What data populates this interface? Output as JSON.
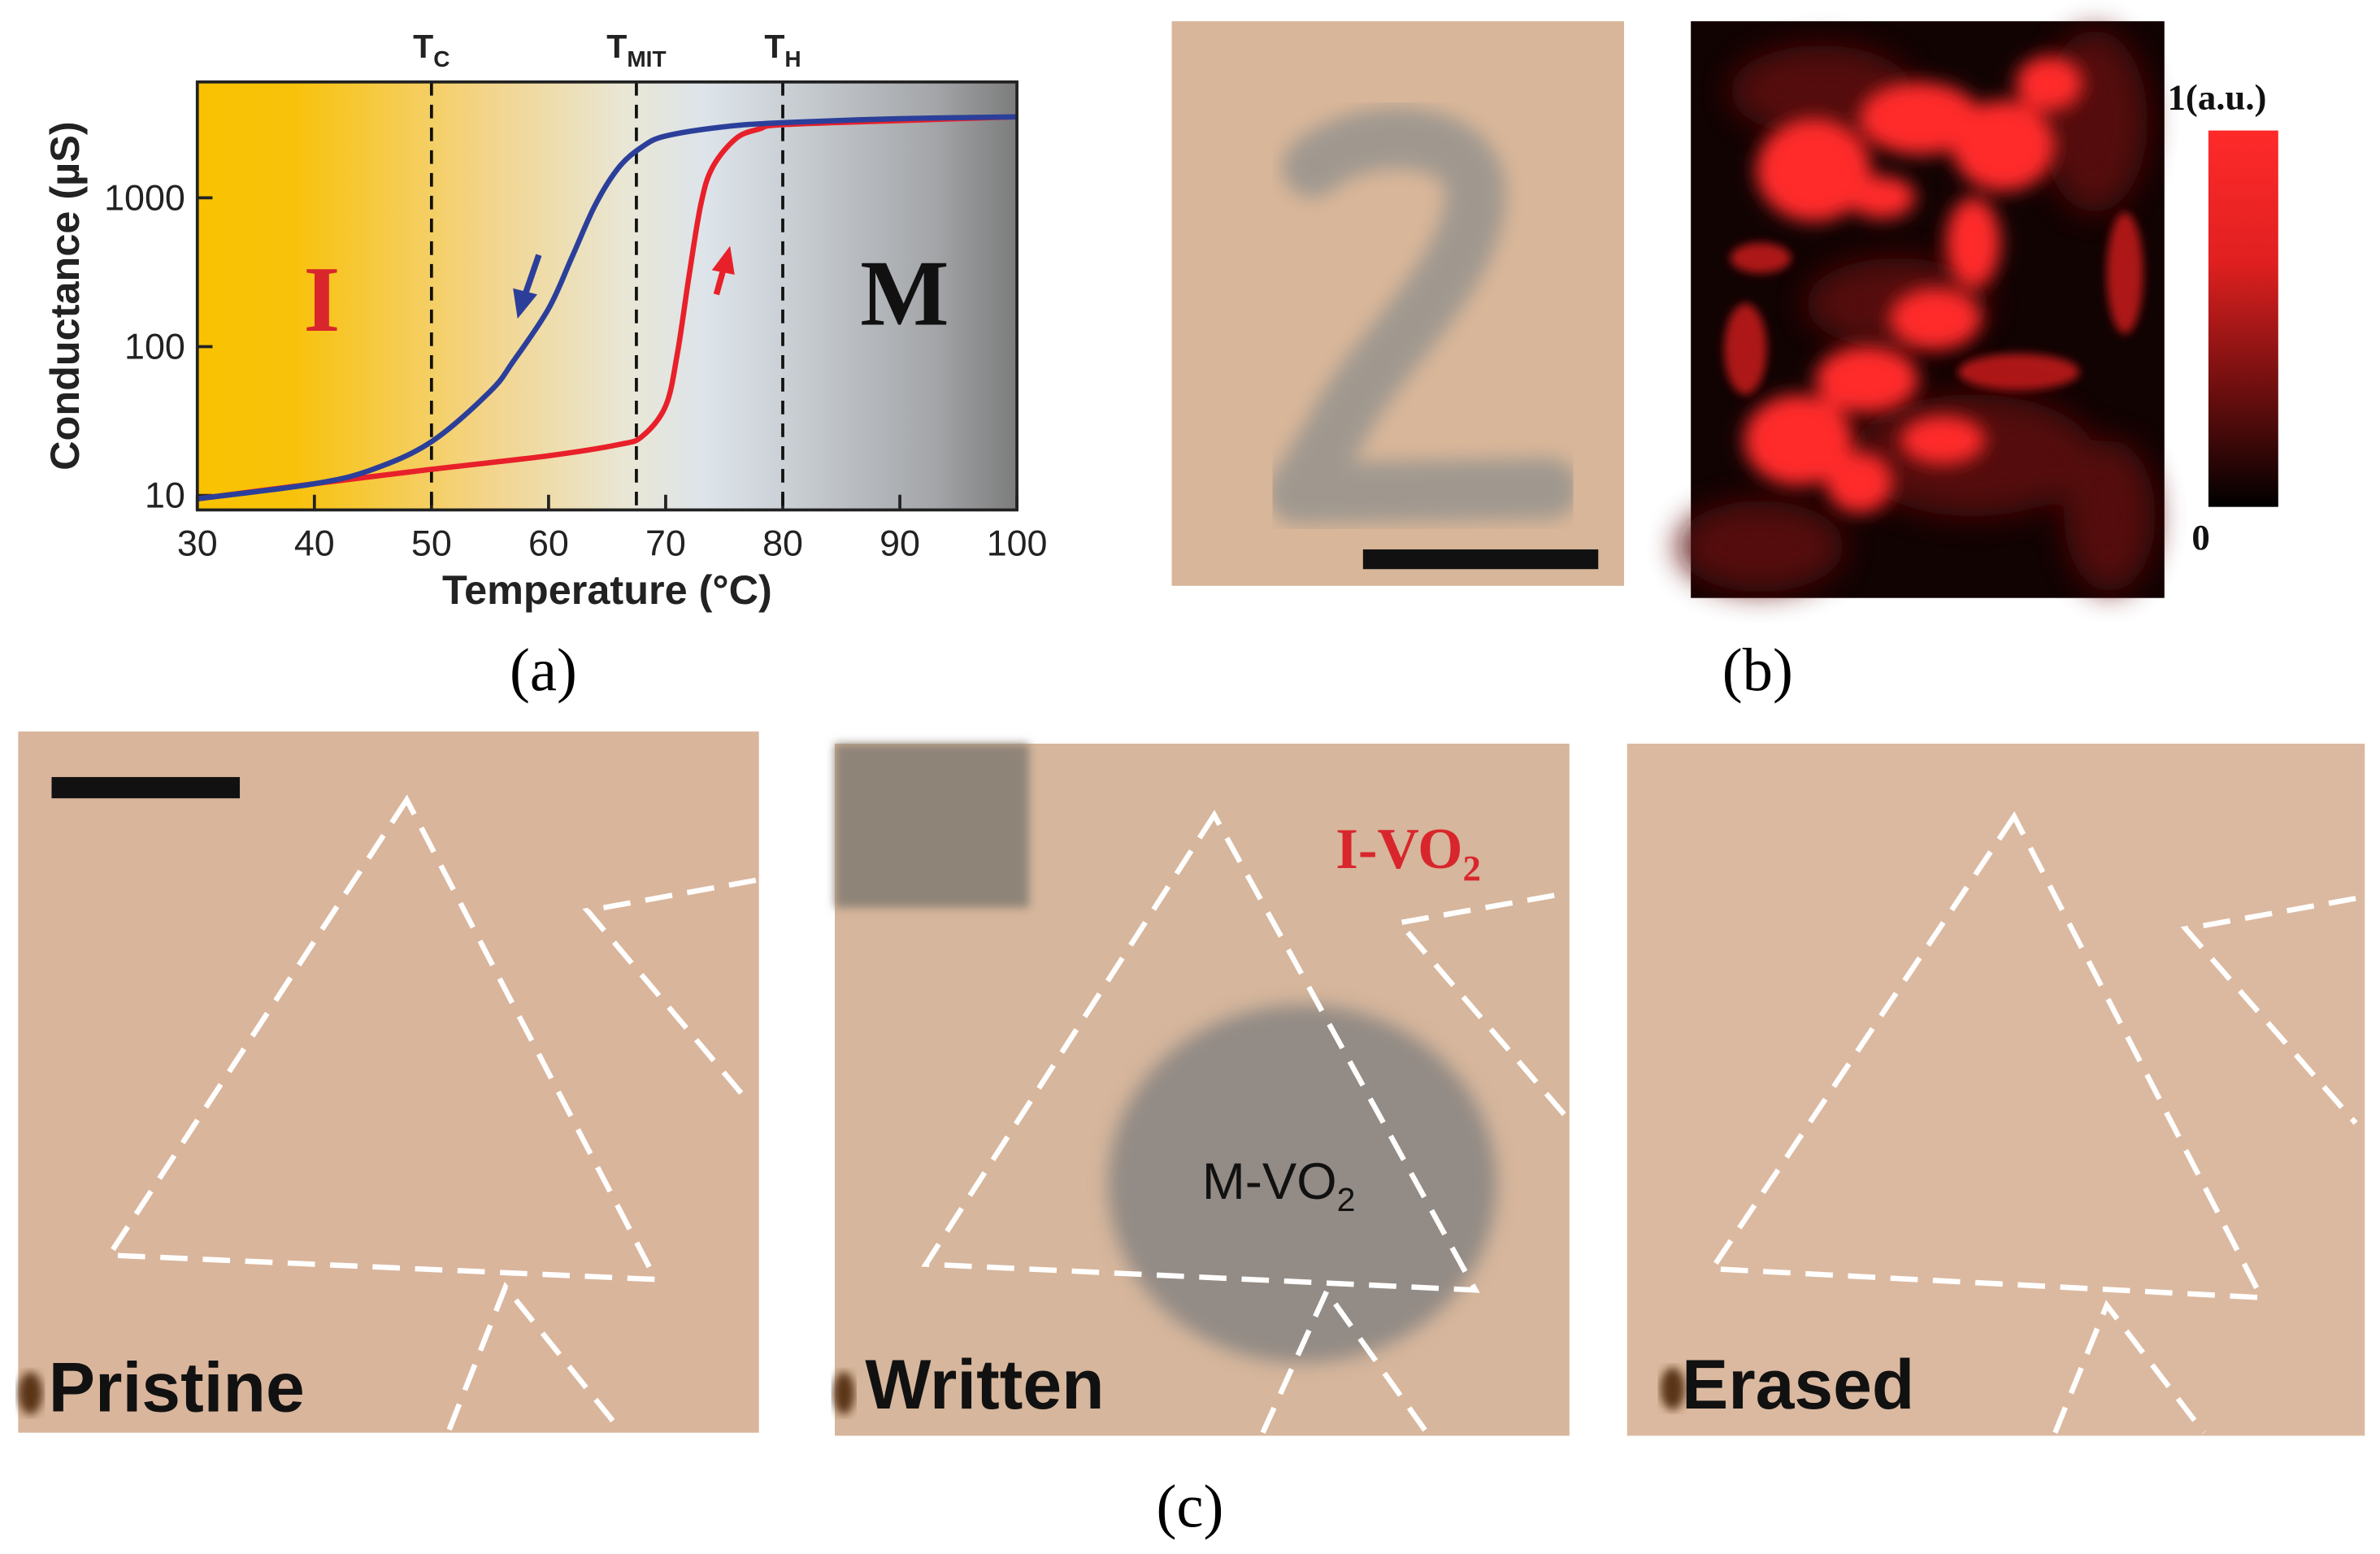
{
  "captions": {
    "a": "(a)",
    "b": "(b)",
    "c": "(c)"
  },
  "panel_a": {
    "region_insulator": "I",
    "region_metal": "M",
    "markers": [
      {
        "name": "T",
        "sub": "C",
        "x": 50
      },
      {
        "name": "T",
        "sub": "MIT",
        "x": 67.5
      },
      {
        "name": "T",
        "sub": "H",
        "x": 80
      }
    ]
  },
  "panel_b": {
    "colorbar_max": "1(a.u.)",
    "colorbar_min": "0"
  },
  "panel_c": {
    "labels": [
      "Pristine",
      "Written",
      "Erased"
    ],
    "iv_label": "I-VO",
    "iv_sub": "2",
    "mv_label": "M-VO",
    "mv_sub": "2"
  },
  "colors": {
    "heating": "#e8202a",
    "cooling": "#2b3f9a",
    "insulator_bg": "#f9c200",
    "metal_bg": "#7c7c7c",
    "substrate": "#d9b49a"
  },
  "chart_data": {
    "type": "line",
    "xlabel": "Temperature (°C)",
    "ylabel": "Conductance (µS)",
    "xlim": [
      30,
      100
    ],
    "ylim": [
      8,
      6000
    ],
    "yscale": "log",
    "x_ticks": [
      30,
      40,
      50,
      60,
      70,
      80,
      90,
      100
    ],
    "y_ticks": [
      10,
      100,
      1000
    ],
    "series": [
      {
        "color": "#e8202a",
        "x": [
          30,
          40,
          50,
          60,
          66,
          68,
          70,
          71,
          72,
          73,
          74,
          76,
          78,
          80,
          90,
          100
        ],
        "y": [
          9.5,
          12,
          15,
          18.5,
          22,
          25,
          40,
          90,
          300,
          900,
          1600,
          2500,
          2900,
          3100,
          3300,
          3500
        ]
      },
      {
        "color": "#2b3f9a",
        "x": [
          30,
          40,
          45,
          50,
          55,
          57,
          60,
          62,
          64,
          66,
          68,
          70,
          75,
          80,
          90,
          100
        ],
        "y": [
          9.5,
          12,
          15,
          23,
          50,
          80,
          180,
          400,
          900,
          1600,
          2200,
          2600,
          3000,
          3200,
          3400,
          3500
        ]
      }
    ]
  }
}
